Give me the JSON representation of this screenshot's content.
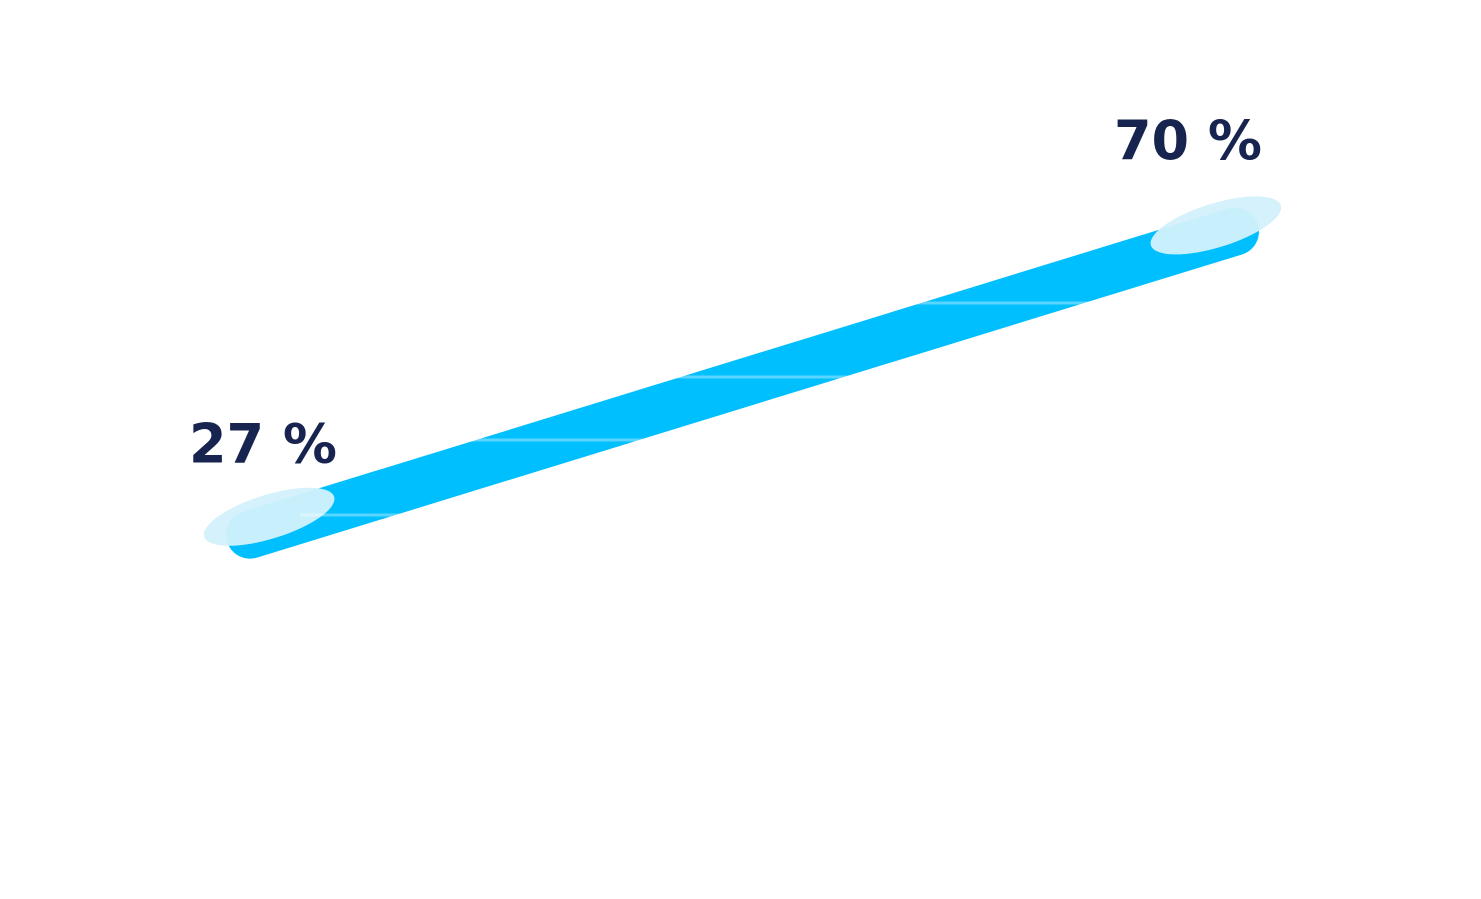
{
  "chart_data": {
    "type": "line",
    "categories": [
      null,
      null
    ],
    "values": [
      27,
      70
    ],
    "value_labels": [
      "27 %",
      "70 %"
    ],
    "color": "#00bfff"
  }
}
